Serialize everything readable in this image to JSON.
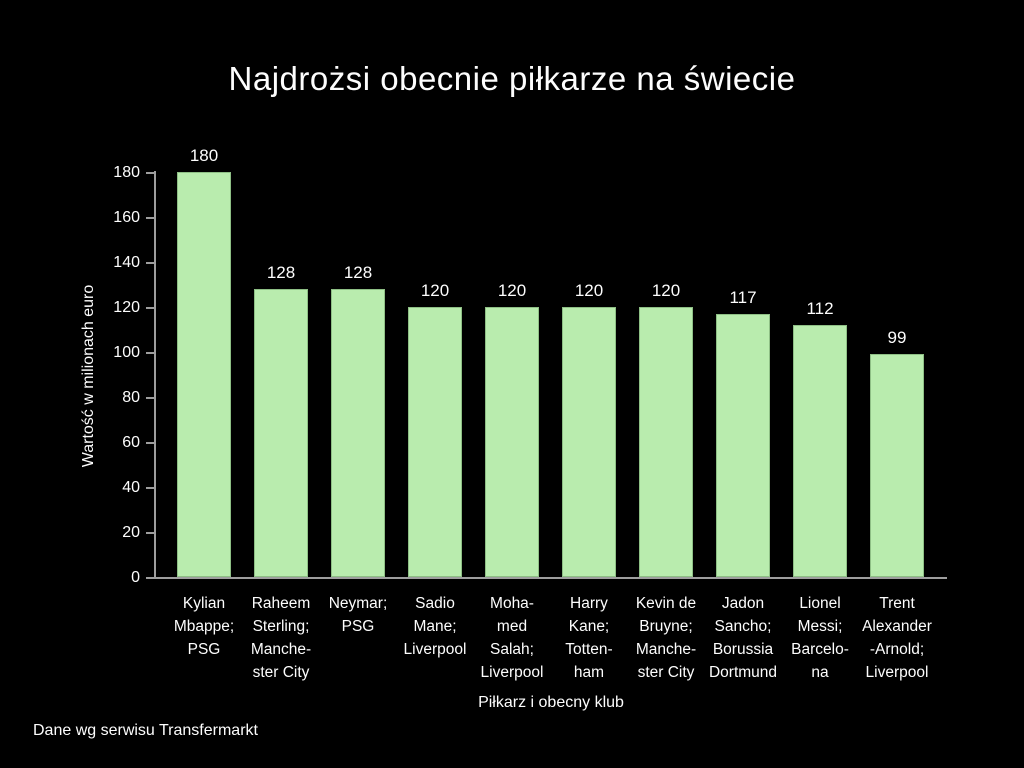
{
  "window": {
    "background_color": "#000000",
    "text_color": "#fdfdfd"
  },
  "footer": {
    "source_note": "Dane wg serwisu Transfermarkt"
  },
  "chart_data": {
    "type": "bar",
    "title": "Najdrożsi obecnie piłkarze na świecie",
    "xlabel": "Piłkarz i obecny klub",
    "ylabel": "Wartość w milionach euro",
    "categories": [
      "Kylian Mbappe; PSG",
      "Raheem Sterling; Manchester City",
      "Neymar; PSG",
      "Sadio Mane; Liverpool",
      "Mohamed Salah; Liverpool",
      "Harry Kane; Tottenham",
      "Kevin de Bruyne; Manchester City",
      "Jadon Sancho; Borussia Dortmund",
      "Lionel Messi; Barcelona",
      "Trent Alexander-Arnold; Liverpool"
    ],
    "category_display_lines": [
      [
        "Kylian",
        "Mbappe;",
        "PSG"
      ],
      [
        "Raheem",
        "Sterling;",
        "Manche-",
        "ster City"
      ],
      [
        "Neymar;",
        "PSG"
      ],
      [
        "Sadio",
        "Mane;",
        "Liverpool"
      ],
      [
        "Moha-",
        "med",
        "Salah;",
        "Liverpool"
      ],
      [
        "Harry",
        "Kane;",
        "Totten-",
        "ham"
      ],
      [
        "Kevin de",
        "Bruyne;",
        "Manche-",
        "ster City"
      ],
      [
        "Jadon",
        "Sancho;",
        "Borussia",
        "Dortmund"
      ],
      [
        "Lionel",
        "Messi;",
        "Barcelo-",
        "na"
      ],
      [
        "Trent",
        "Alexander",
        "-Arnold;",
        "Liverpool"
      ]
    ],
    "values": [
      180,
      128,
      128,
      120,
      120,
      120,
      120,
      117,
      112,
      99
    ],
    "data_labels": true,
    "ylim": [
      0,
      180
    ],
    "ytick_step": 20,
    "grid": false,
    "legend": "none",
    "bar_color": "#b9ecae",
    "bar_border_color": "#8ebf85",
    "axis_color": "#9e9e9e"
  }
}
